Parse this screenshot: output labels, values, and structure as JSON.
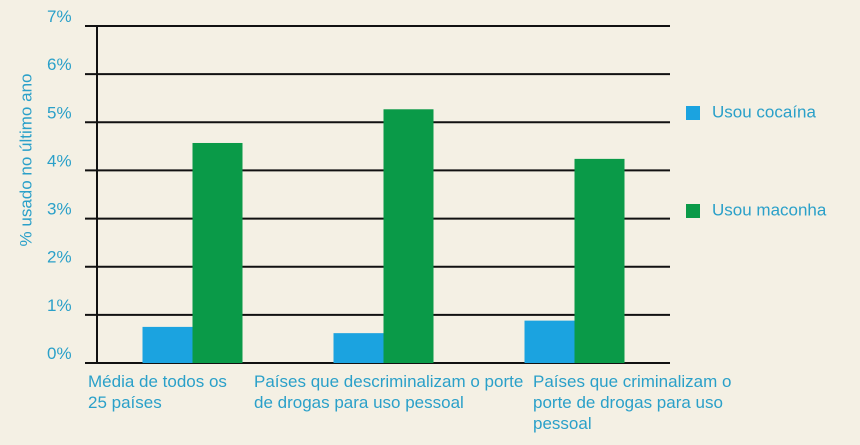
{
  "chart_data": {
    "type": "bar",
    "ylabel": "% usado no último ano",
    "categories": [
      "Média de todos os 25 países",
      "Países que descriminalizam o porte de drogas para uso pessoal",
      "Países que criminalizam o porte de drogas para uso pessoal"
    ],
    "series": [
      {
        "name": "Usou cocaína",
        "color": "#1ba3e0",
        "values": [
          0.75,
          0.62,
          0.88
        ]
      },
      {
        "name": "Usou maconha",
        "color": "#0a9a48",
        "values": [
          4.57,
          5.27,
          4.24
        ]
      }
    ],
    "ylim": [
      0,
      7
    ],
    "yticks": [
      {
        "value": 0,
        "label": "0%"
      },
      {
        "value": 1,
        "label": "1%"
      },
      {
        "value": 2,
        "label": "2%"
      },
      {
        "value": 3,
        "label": "3%"
      },
      {
        "value": 4,
        "label": "4%"
      },
      {
        "value": 5,
        "label": "5%"
      },
      {
        "value": 6,
        "label": "6%"
      },
      {
        "value": 7,
        "label": "7%"
      }
    ],
    "grid": true
  }
}
